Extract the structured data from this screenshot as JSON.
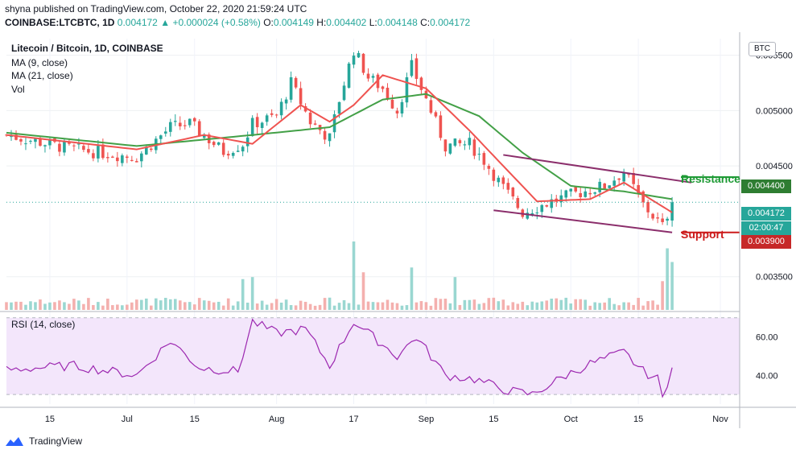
{
  "header": {
    "line1": "shyna published on TradingView.com, October 22, 2020 21:59:24 UTC",
    "symbol": "COINBASE:LTCBTC, 1D",
    "price": "0.004172",
    "change": "+0.000024 (+0.58%)",
    "o_label": "O:",
    "o_value": "0.004149",
    "h_label": "H:",
    "h_value": "0.004402",
    "l_label": "L:",
    "l_value": "0.004148",
    "c_label": "C:",
    "c_value": "0.004172"
  },
  "legend": {
    "title": "Litecoin / Bitcoin, 1D, COINBASE",
    "ma9": "MA (9, close)",
    "ma21": "MA (21, close)",
    "vol": "Vol",
    "rsi": "RSI (14, close)"
  },
  "price_axis": {
    "badge": "BTC",
    "ticks": [
      "0.005500",
      "0.005000",
      "0.004500",
      "0.003500"
    ],
    "tick_values": [
      0.0055,
      0.005,
      0.0045,
      0.0035
    ],
    "tags": {
      "resistance": "0.004400",
      "current": "0.004172",
      "countdown": "02:00:47",
      "support": "0.003900"
    }
  },
  "rsi_axis": {
    "ticks": [
      "60.00",
      "40.00"
    ]
  },
  "time_axis": {
    "labels": [
      "15",
      "Jul",
      "15",
      "Aug",
      "17",
      "Sep",
      "15",
      "Oct",
      "15",
      "Nov"
    ]
  },
  "annotations": {
    "resistance": "Resistance",
    "support": "Support"
  },
  "footer": {
    "brand": "TradingView"
  },
  "colors": {
    "up": "#26a69a",
    "down": "#ef5350",
    "ma9": "#ef5350",
    "ma21": "#43a047",
    "channel": "#8b2e6b",
    "rsi": "#9c27b0",
    "resistance": "#1e9a35",
    "support": "#cc1b1b"
  },
  "chart_data": {
    "type": "candlestick",
    "title": "Litecoin / Bitcoin, 1D, COINBASE",
    "x_range": [
      "2020-06-06",
      "2020-11-05"
    ],
    "ylim": [
      0.0032,
      0.00565
    ],
    "anchors": [
      [
        "2020-06-06",
        0.00478
      ],
      [
        "2020-06-20",
        0.00465
      ],
      [
        "2020-07-03",
        0.00458
      ],
      [
        "2020-07-10",
        0.00485
      ],
      [
        "2020-07-14",
        0.00488
      ],
      [
        "2020-07-21",
        0.00463
      ],
      [
        "2020-07-25",
        0.0047
      ],
      [
        "2020-07-27",
        0.00488
      ],
      [
        "2020-08-01",
        0.00495
      ],
      [
        "2020-08-04",
        0.00525
      ],
      [
        "2020-08-08",
        0.0049
      ],
      [
        "2020-08-12",
        0.00475
      ],
      [
        "2020-08-14",
        0.0051
      ],
      [
        "2020-08-17",
        0.00555
      ],
      [
        "2020-08-20",
        0.0053
      ],
      [
        "2020-08-23",
        0.0052
      ],
      [
        "2020-08-26",
        0.005
      ],
      [
        "2020-08-29",
        0.0054
      ],
      [
        "2020-09-01",
        0.0051
      ],
      [
        "2020-09-05",
        0.00468
      ],
      [
        "2020-09-10",
        0.0047
      ],
      [
        "2020-09-13",
        0.00455
      ],
      [
        "2020-09-17",
        0.0043
      ],
      [
        "2020-09-21",
        0.00408
      ],
      [
        "2020-09-27",
        0.00418
      ],
      [
        "2020-10-02",
        0.00425
      ],
      [
        "2020-10-08",
        0.00432
      ],
      [
        "2020-10-12",
        0.00445
      ],
      [
        "2020-10-16",
        0.00415
      ],
      [
        "2020-10-20",
        0.00395
      ],
      [
        "2020-10-22",
        0.004172
      ]
    ],
    "ma9_anchors": [
      [
        "2020-06-06",
        0.00478
      ],
      [
        "2020-07-03",
        0.00465
      ],
      [
        "2020-07-17",
        0.00478
      ],
      [
        "2020-07-27",
        0.0047
      ],
      [
        "2020-08-06",
        0.00505
      ],
      [
        "2020-08-12",
        0.0049
      ],
      [
        "2020-08-17",
        0.00505
      ],
      [
        "2020-08-23",
        0.00532
      ],
      [
        "2020-09-01",
        0.0052
      ],
      [
        "2020-09-10",
        0.00482
      ],
      [
        "2020-09-17",
        0.0045
      ],
      [
        "2020-09-24",
        0.00418
      ],
      [
        "2020-10-05",
        0.0042
      ],
      [
        "2020-10-12",
        0.00435
      ],
      [
        "2020-10-22",
        0.00408
      ]
    ],
    "ma21_anchors": [
      [
        "2020-06-06",
        0.0048
      ],
      [
        "2020-07-03",
        0.00468
      ],
      [
        "2020-07-27",
        0.00478
      ],
      [
        "2020-08-12",
        0.00485
      ],
      [
        "2020-08-23",
        0.0051
      ],
      [
        "2020-09-01",
        0.00515
      ],
      [
        "2020-09-12",
        0.00495
      ],
      [
        "2020-09-21",
        0.00462
      ],
      [
        "2020-10-01",
        0.00432
      ],
      [
        "2020-10-12",
        0.00427
      ],
      [
        "2020-10-22",
        0.0042
      ]
    ],
    "channel_upper": [
      [
        "2020-09-17",
        0.0046
      ],
      [
        "2020-10-26",
        0.00435
      ]
    ],
    "channel_lower": [
      [
        "2020-09-15",
        0.0041
      ],
      [
        "2020-10-22",
        0.0039
      ]
    ],
    "resistance_level": 0.0044,
    "support_level": 0.0039,
    "current_price": 0.004172,
    "volume_spikes": [
      [
        "2020-07-25",
        0.45
      ],
      [
        "2020-07-27",
        0.48
      ],
      [
        "2020-08-17",
        1.0
      ],
      [
        "2020-08-19",
        0.55
      ],
      [
        "2020-08-29",
        0.62
      ],
      [
        "2020-09-07",
        0.48
      ],
      [
        "2020-10-20",
        0.42
      ],
      [
        "2020-10-21",
        0.9
      ],
      [
        "2020-10-22",
        0.7
      ]
    ],
    "rsi": {
      "ylim": [
        25,
        72
      ],
      "overbought": 70,
      "oversold": 30,
      "anchors": [
        [
          "2020-06-06",
          43
        ],
        [
          "2020-06-20",
          45
        ],
        [
          "2020-07-03",
          40
        ],
        [
          "2020-07-10",
          58
        ],
        [
          "2020-07-16",
          44
        ],
        [
          "2020-07-24",
          42
        ],
        [
          "2020-07-27",
          68
        ],
        [
          "2020-08-01",
          62
        ],
        [
          "2020-08-07",
          64
        ],
        [
          "2020-08-12",
          45
        ],
        [
          "2020-08-17",
          68
        ],
        [
          "2020-08-22",
          58
        ],
        [
          "2020-08-26",
          50
        ],
        [
          "2020-08-30",
          60
        ],
        [
          "2020-09-05",
          40
        ],
        [
          "2020-09-11",
          38
        ],
        [
          "2020-09-18",
          32
        ],
        [
          "2020-09-23",
          30
        ],
        [
          "2020-09-30",
          40
        ],
        [
          "2020-10-05",
          46
        ],
        [
          "2020-10-12",
          52
        ],
        [
          "2020-10-16",
          42
        ],
        [
          "2020-10-19",
          38
        ],
        [
          "2020-10-20",
          28
        ],
        [
          "2020-10-22",
          44
        ]
      ]
    }
  }
}
